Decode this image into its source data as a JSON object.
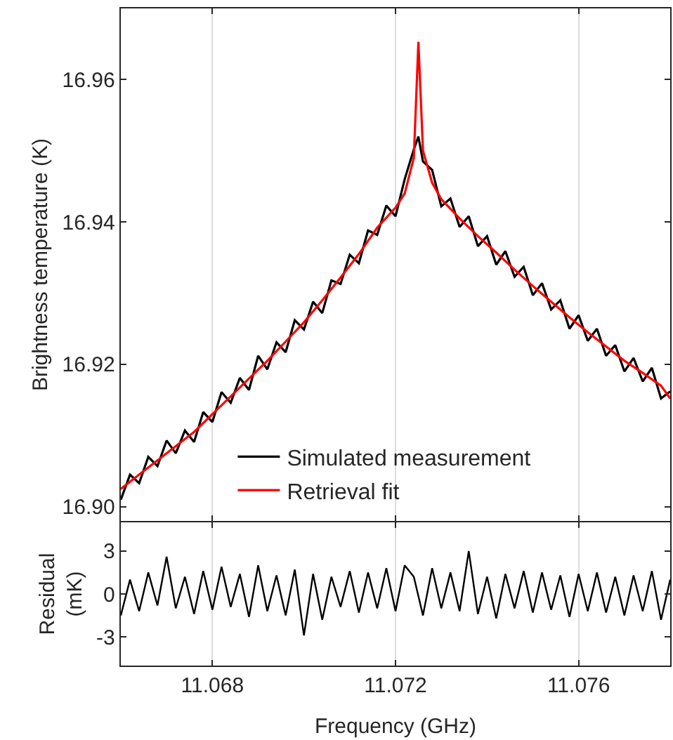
{
  "chart_data": [
    {
      "type": "line",
      "ylabel": "Brightness temperature (K)",
      "xlim": [
        11.066,
        11.078
      ],
      "xticks": [
        11.068,
        11.072,
        11.076
      ],
      "ylim": [
        16.898,
        16.97
      ],
      "yticks": [
        {
          "value": 16.9,
          "label": "16.90"
        },
        16.92,
        16.94,
        16.96
      ],
      "tick_labels": "y",
      "grid": "x",
      "legend": "bottom left",
      "series": [
        {
          "name": "Simulated measurement",
          "color": "#000000",
          "x": [
            11.066,
            11.0662,
            11.0664,
            11.0666,
            11.0668,
            11.067,
            11.0672,
            11.0674,
            11.0676,
            11.0678,
            11.068,
            11.0682,
            11.0684,
            11.0686,
            11.0688,
            11.069,
            11.0692,
            11.0694,
            11.0696,
            11.0698,
            11.07,
            11.0702,
            11.0704,
            11.0706,
            11.0708,
            11.071,
            11.0712,
            11.0714,
            11.0716,
            11.0718,
            11.072,
            11.0722,
            11.0724,
            11.0725,
            11.0726,
            11.0728,
            11.073,
            11.0732,
            11.0734,
            11.0736,
            11.0738,
            11.074,
            11.0742,
            11.0744,
            11.0746,
            11.0748,
            11.075,
            11.0752,
            11.0754,
            11.0756,
            11.0758,
            11.076,
            11.0762,
            11.0764,
            11.0766,
            11.0768,
            11.077,
            11.0772,
            11.0774,
            11.0776,
            11.0778,
            11.078
          ],
          "values": [
            16.901,
            16.9045,
            16.9033,
            16.907,
            16.9057,
            16.9093,
            16.9075,
            16.9107,
            16.9091,
            16.9133,
            16.9119,
            16.9161,
            16.9146,
            16.9181,
            16.9164,
            16.9212,
            16.9193,
            16.9231,
            16.9217,
            16.9262,
            16.9249,
            16.9288,
            16.9272,
            16.9318,
            16.9313,
            16.9354,
            16.9342,
            16.9388,
            16.9382,
            16.9423,
            16.9408,
            16.946,
            16.9502,
            16.952,
            16.9485,
            16.9473,
            16.9422,
            16.9433,
            16.9393,
            16.9408,
            16.9366,
            16.938,
            16.934,
            16.9359,
            16.9323,
            16.9337,
            16.9297,
            16.9314,
            16.9277,
            16.929,
            16.925,
            16.9269,
            16.9233,
            16.925,
            16.9212,
            16.9227,
            16.919,
            16.9209,
            16.9176,
            16.9195,
            16.9152,
            16.9162
          ]
        },
        {
          "name": "Retrieval fit",
          "color": "#ff0000",
          "x": [
            11.066,
            11.0664,
            11.0668,
            11.0672,
            11.0676,
            11.068,
            11.0684,
            11.0688,
            11.0692,
            11.0696,
            11.07,
            11.0704,
            11.0708,
            11.0712,
            11.0716,
            11.072,
            11.0722,
            11.0724,
            11.0725,
            11.0726,
            11.0728,
            11.073,
            11.0734,
            11.0738,
            11.0742,
            11.0746,
            11.075,
            11.0754,
            11.0758,
            11.0762,
            11.0766,
            11.077,
            11.0774,
            11.0778,
            11.078
          ],
          "values": [
            16.9025,
            16.9045,
            16.9065,
            16.9085,
            16.9105,
            16.913,
            16.9155,
            16.918,
            16.9205,
            16.9232,
            16.9259,
            16.929,
            16.9322,
            16.9355,
            16.9392,
            16.942,
            16.944,
            16.949,
            16.9653,
            16.95,
            16.9455,
            16.9432,
            16.9405,
            16.938,
            16.9357,
            16.9333,
            16.931,
            16.9288,
            16.9266,
            16.9245,
            16.9225,
            16.9205,
            16.9188,
            16.917,
            16.9152
          ]
        }
      ]
    },
    {
      "type": "line",
      "xlabel": "Frequency (GHz)",
      "ylabel": "Residual\n(mK)",
      "xlim": [
        11.066,
        11.078
      ],
      "xticks": [
        11.068,
        11.072,
        11.076
      ],
      "ylim": [
        -5,
        5
      ],
      "yticks": [
        -3,
        0,
        3
      ],
      "grid": "x",
      "series": [
        {
          "color": "#000000",
          "x": [
            11.066,
            11.0662,
            11.0664,
            11.0666,
            11.0668,
            11.067,
            11.0672,
            11.0674,
            11.0676,
            11.0678,
            11.068,
            11.0682,
            11.0684,
            11.0686,
            11.0688,
            11.069,
            11.0692,
            11.0694,
            11.0696,
            11.0698,
            11.07,
            11.0702,
            11.0704,
            11.0706,
            11.0708,
            11.071,
            11.0712,
            11.0714,
            11.0716,
            11.0718,
            11.072,
            11.0722,
            11.0724,
            11.0726,
            11.0728,
            11.073,
            11.0732,
            11.0734,
            11.0736,
            11.0738,
            11.074,
            11.0742,
            11.0744,
            11.0746,
            11.0748,
            11.075,
            11.0752,
            11.0754,
            11.0756,
            11.0758,
            11.076,
            11.0762,
            11.0764,
            11.0766,
            11.0768,
            11.077,
            11.0772,
            11.0774,
            11.0776,
            11.0778,
            11.078
          ],
          "values": [
            -1.5,
            1.0,
            -1.2,
            1.5,
            -0.8,
            2.6,
            -1.0,
            1.2,
            -1.4,
            1.6,
            -1.1,
            1.9,
            -0.9,
            1.4,
            -1.6,
            2.0,
            -1.2,
            1.3,
            -1.5,
            1.7,
            -2.9,
            1.4,
            -1.8,
            1.2,
            -0.9,
            1.6,
            -1.3,
            1.5,
            -1.0,
            1.8,
            -1.2,
            2.0,
            1.2,
            -1.5,
            1.8,
            -1.0,
            1.5,
            -1.2,
            3.0,
            -1.4,
            1.2,
            -1.7,
            1.4,
            -1.0,
            1.6,
            -1.3,
            1.5,
            -1.1,
            1.3,
            -1.6,
            1.4,
            -1.2,
            1.5,
            -1.3,
            1.2,
            -1.5,
            1.3,
            -1.2,
            1.6,
            -1.8,
            1.0
          ]
        }
      ]
    }
  ]
}
